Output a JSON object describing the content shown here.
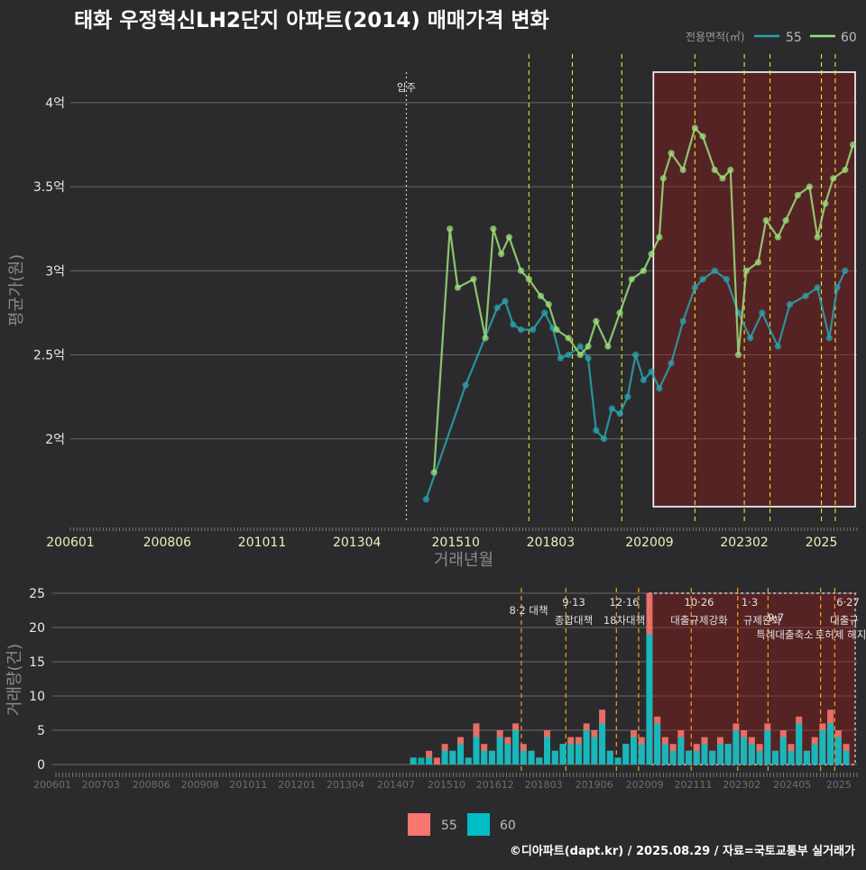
{
  "title": "태화 우정혁신LH2단지 아파트(2014) 매매가격 변화",
  "footer": "©디아파트(dapt.kr) / 2025.08.29 / 자료=국토교통부 실거래가",
  "colors": {
    "s55": "#2aa3ad",
    "s60": "#9be07b",
    "bar55": "#f8766d",
    "bar60": "#00bfc4",
    "vline": "#e8e82a",
    "bvline": "#f0a020",
    "band": "#8b1a1a"
  },
  "chart_data": [
    {
      "type": "line",
      "xlabel": "거래년월",
      "ylabel": "평균가(원)",
      "ylim": [
        1.5,
        4.3
      ],
      "x_ticks": [
        "200601",
        "200806",
        "201011",
        "201304",
        "201510",
        "201803",
        "202009",
        "202302",
        "2025"
      ],
      "y_ticks": [
        {
          "v": 2,
          "label": "2억"
        },
        {
          "v": 2.5,
          "label": "2.5억"
        },
        {
          "v": 3,
          "label": "3억"
        },
        {
          "v": 3.5,
          "label": "3.5억"
        },
        {
          "v": 4,
          "label": "4억"
        }
      ],
      "legend_title": "전용면적(㎡)",
      "series": [
        {
          "name": "55",
          "points": [
            [
              2015.0,
              1.64
            ],
            [
              2016.0,
              2.32
            ],
            [
              2016.8,
              2.78
            ],
            [
              2017.0,
              2.82
            ],
            [
              2017.2,
              2.68
            ],
            [
              2017.4,
              2.65
            ],
            [
              2017.7,
              2.65
            ],
            [
              2018.0,
              2.75
            ],
            [
              2018.2,
              2.66
            ],
            [
              2018.4,
              2.48
            ],
            [
              2018.6,
              2.5
            ],
            [
              2018.9,
              2.55
            ],
            [
              2019.1,
              2.48
            ],
            [
              2019.3,
              2.05
            ],
            [
              2019.5,
              2.0
            ],
            [
              2019.7,
              2.18
            ],
            [
              2019.9,
              2.15
            ],
            [
              2020.1,
              2.25
            ],
            [
              2020.3,
              2.5
            ],
            [
              2020.5,
              2.35
            ],
            [
              2020.7,
              2.4
            ],
            [
              2020.9,
              2.3
            ],
            [
              2021.2,
              2.45
            ],
            [
              2021.5,
              2.7
            ],
            [
              2021.8,
              2.9
            ],
            [
              2022.0,
              2.95
            ],
            [
              2022.3,
              3.0
            ],
            [
              2022.6,
              2.95
            ],
            [
              2022.9,
              2.75
            ],
            [
              2023.2,
              2.6
            ],
            [
              2023.5,
              2.75
            ],
            [
              2023.9,
              2.55
            ],
            [
              2024.2,
              2.8
            ],
            [
              2024.6,
              2.85
            ],
            [
              2024.9,
              2.9
            ],
            [
              2025.2,
              2.6
            ],
            [
              2025.4,
              2.9
            ],
            [
              2025.6,
              3.0
            ]
          ]
        },
        {
          "name": "60",
          "points": [
            [
              2015.2,
              1.8
            ],
            [
              2015.6,
              3.25
            ],
            [
              2015.8,
              2.9
            ],
            [
              2016.2,
              2.95
            ],
            [
              2016.5,
              2.6
            ],
            [
              2016.7,
              3.25
            ],
            [
              2016.9,
              3.1
            ],
            [
              2017.1,
              3.2
            ],
            [
              2017.4,
              3.0
            ],
            [
              2017.6,
              2.95
            ],
            [
              2017.9,
              2.85
            ],
            [
              2018.1,
              2.8
            ],
            [
              2018.3,
              2.65
            ],
            [
              2018.6,
              2.6
            ],
            [
              2018.9,
              2.5
            ],
            [
              2019.1,
              2.55
            ],
            [
              2019.3,
              2.7
            ],
            [
              2019.6,
              2.55
            ],
            [
              2019.9,
              2.75
            ],
            [
              2020.2,
              2.95
            ],
            [
              2020.5,
              3.0
            ],
            [
              2020.7,
              3.1
            ],
            [
              2020.9,
              3.2
            ],
            [
              2021.0,
              3.55
            ],
            [
              2021.2,
              3.7
            ],
            [
              2021.5,
              3.6
            ],
            [
              2021.8,
              3.85
            ],
            [
              2022.0,
              3.8
            ],
            [
              2022.3,
              3.6
            ],
            [
              2022.5,
              3.55
            ],
            [
              2022.7,
              3.6
            ],
            [
              2022.9,
              2.5
            ],
            [
              2023.1,
              3.0
            ],
            [
              2023.4,
              3.05
            ],
            [
              2023.6,
              3.3
            ],
            [
              2023.9,
              3.2
            ],
            [
              2024.1,
              3.3
            ],
            [
              2024.4,
              3.45
            ],
            [
              2024.7,
              3.5
            ],
            [
              2024.9,
              3.2
            ],
            [
              2025.1,
              3.4
            ],
            [
              2025.3,
              3.55
            ],
            [
              2025.6,
              3.6
            ],
            [
              2025.8,
              3.75
            ]
          ]
        }
      ]
    },
    {
      "type": "bar",
      "ylabel": "거래량(건)",
      "ylim": [
        0,
        25
      ],
      "x_ticks": [
        "200601",
        "200703",
        "200806",
        "200908",
        "201011",
        "201201",
        "201304",
        "201407",
        "201510",
        "201612",
        "201803",
        "201906",
        "202009",
        "202111",
        "202302",
        "202405",
        "2025"
      ],
      "y_ticks": [
        0,
        5,
        10,
        15,
        20,
        25
      ],
      "series": [
        {
          "name": "55",
          "values": [
            1,
            0,
            2,
            1,
            3,
            2,
            4,
            1,
            6,
            3,
            2,
            5,
            4,
            6,
            3,
            2,
            1,
            5,
            2,
            3,
            4,
            4,
            6,
            5,
            8,
            2,
            1,
            3,
            5,
            4,
            25,
            7,
            4,
            3,
            5,
            2,
            3,
            4,
            2,
            4,
            3,
            6,
            5,
            4,
            3,
            6,
            2,
            5,
            3,
            7,
            2,
            4,
            6,
            8,
            5,
            3
          ]
        },
        {
          "name": "60",
          "values": [
            1,
            1,
            1,
            0,
            2,
            2,
            3,
            1,
            4,
            2,
            2,
            4,
            3,
            5,
            2,
            2,
            1,
            4,
            2,
            3,
            3,
            3,
            5,
            4,
            6,
            2,
            1,
            3,
            4,
            3,
            19,
            6,
            3,
            2,
            4,
            2,
            2,
            3,
            2,
            3,
            3,
            5,
            4,
            3,
            2,
            5,
            2,
            4,
            2,
            6,
            2,
            3,
            5,
            6,
            4,
            2
          ]
        }
      ],
      "policy_labels": [
        {
          "date": "8·2 대책"
        },
        {
          "date": "9·13",
          "name": "종합대책"
        },
        {
          "date": "12·16",
          "name": "18차대책"
        },
        {
          "date": "10·26",
          "name": "대출규제강화"
        },
        {
          "date": "1·3",
          "name": "규제완화"
        },
        {
          "date": "9·7",
          "name": "특례대출축소"
        },
        {
          "name": "토허제 해지"
        },
        {
          "date": "6·27",
          "name": "대출규"
        }
      ]
    }
  ],
  "top_annotation": "입주"
}
